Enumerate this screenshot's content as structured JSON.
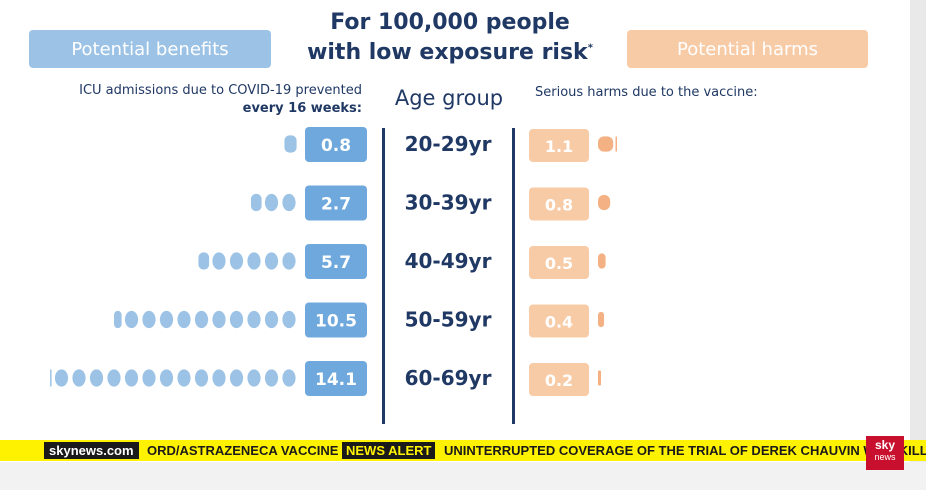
{
  "title_line1": "For 100,000 people",
  "title_line2": "with low exposure risk",
  "title_marker": "*",
  "benefits_label": "Potential benefits",
  "harms_label": "Potential harms",
  "benefit_subtitle_line1": "ICU admissions due to COVID-19 prevented",
  "benefit_subtitle_line2": "every 16 weeks:",
  "age_group_label": "Age group",
  "harm_subtitle": "Serious harms due to the vaccine:",
  "colors": {
    "benefit": "#9cc3e6",
    "benefit_value_box": "#6fa8dc",
    "harm": "#f8cba7",
    "harm_value_box": "#f4b183",
    "title": "#1f3864"
  },
  "chart_data": {
    "type": "bar",
    "categories": [
      "20-29yr",
      "30-39yr",
      "40-49yr",
      "50-59yr",
      "60-69yr"
    ],
    "series": [
      {
        "name": "Potential benefits",
        "values": [
          0.8,
          2.7,
          5.7,
          10.5,
          14.1
        ]
      },
      {
        "name": "Potential harms",
        "values": [
          1.1,
          0.8,
          0.5,
          0.4,
          0.2
        ]
      }
    ],
    "value_labels": {
      "benefits": [
        "0.8",
        "2.7",
        "5.7",
        "10.5",
        "14.1"
      ],
      "harms": [
        "1.1",
        "0.8",
        "0.5",
        "0.4",
        "0.2"
      ]
    }
  },
  "ticker": {
    "logo": "skynews.com",
    "text1": "ORD/ASTRAZENECA VACCINE",
    "alert": "NEWS ALERT",
    "text2": "UNINTERRUPTED COVERAGE OF THE TRIAL OF DEREK CHAUVIN WHO KILLED"
  },
  "channel_logo": {
    "line1": "sky",
    "line2": "news"
  }
}
